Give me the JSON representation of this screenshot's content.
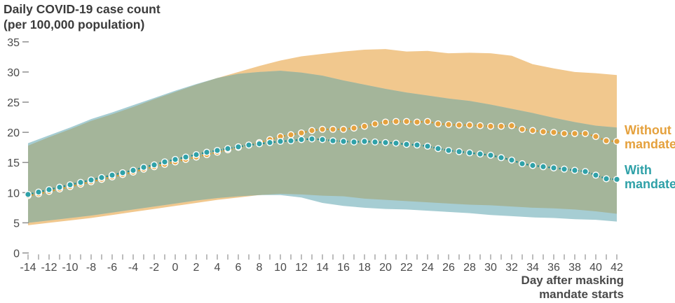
{
  "chart_data": {
    "type": "line",
    "title_line1": "Daily COVID-19 case count",
    "title_line2": "(per 100,000 population)",
    "xlabel_line1": "Day after masking",
    "xlabel_line2": "mandate starts",
    "xlim": [
      -14,
      42
    ],
    "ylim": [
      0,
      35
    ],
    "grid": false,
    "legend_position": "right",
    "background_color": "#FFFFFF",
    "band_overlap_color": "#A4B59A",
    "axis_text_color": "#4a4a4a",
    "tick_color": "#999999",
    "yticks": [
      0,
      5,
      10,
      15,
      20,
      25,
      30,
      35
    ],
    "xtick_labels": [
      -14,
      -12,
      -10,
      -8,
      -6,
      -4,
      -2,
      0,
      2,
      4,
      6,
      8,
      10,
      12,
      14,
      16,
      18,
      20,
      22,
      24,
      26,
      28,
      30,
      32,
      34,
      36,
      38,
      40,
      42
    ],
    "x_minor_tick_step": 1,
    "x": [
      -14,
      -13,
      -12,
      -11,
      -10,
      -9,
      -8,
      -7,
      -6,
      -5,
      -4,
      -3,
      -2,
      -1,
      0,
      1,
      2,
      3,
      4,
      5,
      6,
      7,
      8,
      9,
      10,
      11,
      12,
      13,
      14,
      15,
      16,
      17,
      18,
      19,
      20,
      21,
      22,
      23,
      24,
      25,
      26,
      27,
      28,
      29,
      30,
      31,
      32,
      33,
      34,
      35,
      36,
      37,
      38,
      39,
      40,
      41,
      42
    ],
    "band_x": [
      -14,
      -12,
      -10,
      -8,
      -6,
      -4,
      -2,
      0,
      2,
      4,
      6,
      8,
      10,
      12,
      14,
      16,
      18,
      20,
      22,
      24,
      26,
      28,
      30,
      32,
      34,
      36,
      38,
      40,
      42
    ],
    "series": [
      {
        "name": "Without mandate",
        "label_line1": "Without",
        "label_line2": "mandate",
        "color": "#E5A13D",
        "line_color": "#D99A2F",
        "band_color": "#F1C88E",
        "values": [
          9.5,
          9.8,
          10.2,
          10.6,
          11.0,
          11.4,
          11.8,
          12.2,
          12.6,
          13.0,
          13.4,
          13.9,
          14.3,
          14.7,
          15.1,
          15.5,
          15.9,
          16.3,
          16.7,
          17.1,
          17.5,
          17.9,
          18.3,
          18.8,
          19.3,
          19.6,
          19.9,
          20.3,
          20.5,
          20.5,
          20.5,
          20.7,
          21.0,
          21.4,
          21.7,
          21.8,
          21.8,
          21.7,
          21.8,
          21.4,
          21.3,
          21.2,
          21.2,
          21.1,
          21.0,
          21.0,
          21.1,
          20.5,
          20.3,
          20.1,
          20.0,
          19.8,
          19.8,
          19.8,
          19.3,
          18.6,
          18.5
        ],
        "band_upper": [
          17.8,
          19.2,
          20.5,
          21.9,
          23.0,
          24.2,
          25.5,
          26.7,
          27.9,
          29.0,
          30.0,
          31.0,
          31.9,
          32.6,
          33.0,
          33.4,
          33.7,
          33.8,
          33.4,
          33.5,
          33.1,
          33.2,
          33.1,
          32.7,
          31.3,
          30.6,
          30.0,
          29.8,
          29.5
        ],
        "band_lower": [
          4.6,
          5.0,
          5.4,
          5.8,
          6.3,
          6.8,
          7.3,
          7.8,
          8.3,
          8.8,
          9.2,
          9.6,
          9.8,
          9.7,
          9.5,
          9.4,
          9.0,
          8.8,
          8.6,
          8.4,
          8.2,
          8.0,
          7.9,
          7.7,
          7.5,
          7.4,
          7.2,
          6.9,
          6.5
        ]
      },
      {
        "name": "With mandate",
        "label_line1": "With",
        "label_line2": "mandate",
        "color": "#2FA1A8",
        "line_color": "#218F96",
        "band_color": "#A6CDD3",
        "values": [
          9.7,
          10.1,
          10.5,
          10.9,
          11.3,
          11.7,
          12.1,
          12.5,
          12.9,
          13.3,
          13.7,
          14.2,
          14.6,
          15.1,
          15.5,
          15.9,
          16.3,
          16.7,
          17.0,
          17.3,
          17.6,
          17.9,
          18.1,
          18.3,
          18.5,
          18.6,
          18.8,
          18.9,
          18.8,
          18.6,
          18.5,
          18.4,
          18.5,
          18.4,
          18.3,
          18.2,
          18.0,
          17.9,
          17.7,
          17.3,
          17.0,
          16.8,
          16.6,
          16.4,
          16.2,
          15.8,
          15.4,
          14.8,
          14.5,
          14.3,
          14.1,
          13.9,
          13.7,
          13.5,
          12.9,
          12.3,
          12.2
        ],
        "band_upper": [
          18.2,
          19.5,
          20.8,
          22.2,
          23.3,
          24.5,
          25.7,
          26.9,
          28.0,
          29.0,
          29.7,
          30.0,
          30.2,
          29.9,
          29.4,
          28.6,
          27.9,
          27.2,
          26.6,
          26.1,
          25.6,
          25.2,
          24.6,
          23.9,
          23.2,
          22.4,
          21.7,
          21.1,
          20.8
        ],
        "band_lower": [
          5.0,
          5.4,
          5.8,
          6.2,
          6.7,
          7.2,
          7.7,
          8.2,
          8.7,
          9.1,
          9.4,
          9.6,
          9.6,
          9.2,
          8.3,
          7.8,
          7.5,
          7.3,
          7.2,
          7.0,
          6.8,
          6.6,
          6.3,
          6.1,
          5.9,
          5.8,
          5.6,
          5.5,
          5.2
        ]
      }
    ]
  }
}
